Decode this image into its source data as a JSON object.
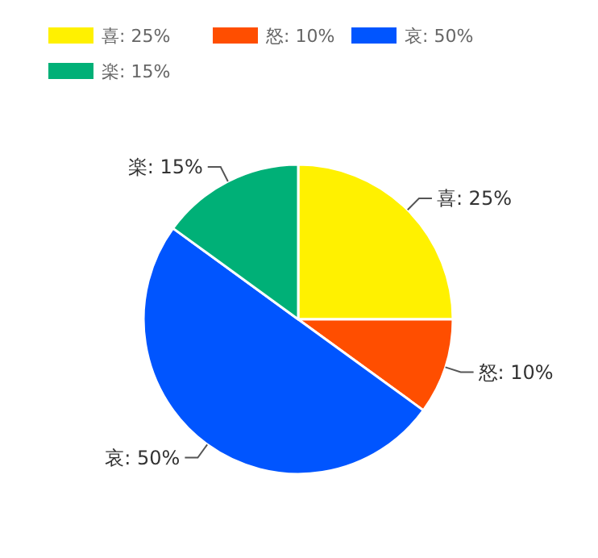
{
  "chart_data": {
    "type": "pie",
    "categories": [
      "喜",
      "怒",
      "哀",
      "楽"
    ],
    "values": [
      25,
      10,
      50,
      15
    ],
    "value_labels": [
      "25%",
      "10%",
      "50%",
      "15%"
    ],
    "colors": [
      "#fff100",
      "#ff4e00",
      "#0055ff",
      "#00b077"
    ],
    "legend": "top left"
  }
}
